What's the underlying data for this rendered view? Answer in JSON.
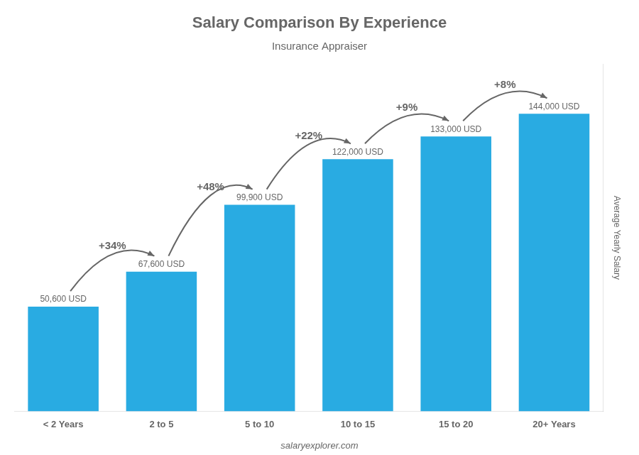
{
  "chart_data": {
    "type": "bar",
    "title": "Salary Comparison By Experience",
    "subtitle": "Insurance Appraiser",
    "categories": [
      "< 2 Years",
      "2 to 5",
      "5 to 10",
      "10 to 15",
      "15 to 20",
      "20+ Years"
    ],
    "values": [
      50600,
      67600,
      99900,
      122000,
      133000,
      144000
    ],
    "value_labels": [
      "50,600 USD",
      "67,600 USD",
      "99,900 USD",
      "122,000 USD",
      "133,000 USD",
      "144,000 USD"
    ],
    "data_labels": true,
    "color": "#29ABE2",
    "ylabel": "Average Yearly Salary",
    "ylim": [
      0,
      168000
    ],
    "yticks": [],
    "tick_labels": "x",
    "grid": false,
    "annotations": [
      {
        "category": "2 to 5",
        "text": "+34%"
      },
      {
        "category": "5 to 10",
        "text": "+48%"
      },
      {
        "category": "10 to 15",
        "text": "+22%"
      },
      {
        "category": "15 to 20",
        "text": "+9%"
      },
      {
        "category": "20+ Years",
        "text": "+8%"
      }
    ],
    "footer": "salaryexplorer.com"
  }
}
